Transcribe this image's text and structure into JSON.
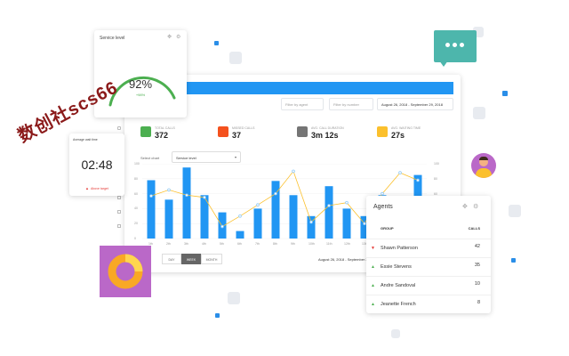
{
  "service_level": {
    "title": "Service level",
    "value": "92%",
    "sub": "+98%"
  },
  "timer": {
    "title": "Average wait time",
    "value": "02:48",
    "footer": "Above target"
  },
  "watermark": "数创社scs66",
  "filters": {
    "agent": "Filter by agent",
    "number": "Filter by number",
    "date": "August 26, 2018 - September 29, 2018"
  },
  "stats": [
    {
      "label": "Total calls",
      "value": "372",
      "color": "#4caf50",
      "icon": "phone-icon"
    },
    {
      "label": "Missed calls",
      "value": "37",
      "color": "#f4511e",
      "icon": "missed-call-icon"
    },
    {
      "label": "Avg. call duration",
      "value": "3m 12s",
      "color": "#757575",
      "icon": "clock-icon"
    },
    {
      "label": "Avg. waiting time",
      "value": "27s",
      "color": "#fbc02d",
      "icon": "hourglass-icon"
    }
  ],
  "chart_select": {
    "label": "Select chart",
    "value": "Service level"
  },
  "segments": [
    "DAY",
    "WEEK",
    "MONTH"
  ],
  "chart_footer_date": "August 26, 2018 - September 29",
  "chart_data": {
    "type": "bar",
    "categories": [
      "1th",
      "2th",
      "3th",
      "4th",
      "5th",
      "6th",
      "7th",
      "8th",
      "9th",
      "10th",
      "11th",
      "12th",
      "13th",
      "14th",
      "15th",
      "16th"
    ],
    "series": [
      {
        "values": [
          78,
          52,
          95,
          58,
          35,
          10,
          40,
          77,
          58,
          30,
          70,
          40,
          30,
          58,
          52,
          85
        ]
      },
      {
        "values": [
          57,
          65,
          58,
          55,
          16,
          30,
          45,
          60,
          90,
          22,
          44,
          48,
          20,
          60,
          88,
          78
        ]
      }
    ],
    "yticks": [
      "100",
      "80",
      "60",
      "40",
      "20",
      "0"
    ],
    "ylim": [
      0,
      100
    ],
    "bar_color": "#2196f3",
    "line_color": "#fbc02d"
  },
  "agents": {
    "title": "Agents",
    "col_group": "GROUP",
    "col_calls": "CALLS",
    "rows": [
      {
        "name": "Shawn Patterson",
        "calls": "42",
        "trend": "down"
      },
      {
        "name": "Essie Stevens",
        "calls": "35",
        "trend": "up"
      },
      {
        "name": "Andre Sandoval",
        "calls": "10",
        "trend": "up"
      },
      {
        "name": "Jeanette French",
        "calls": "8",
        "trend": "up"
      }
    ]
  },
  "colors": {
    "accent": "#2196f3",
    "green": "#4caf50",
    "purple": "#ba68c8",
    "teal": "#4db6ac",
    "orange": "#f9a825"
  }
}
